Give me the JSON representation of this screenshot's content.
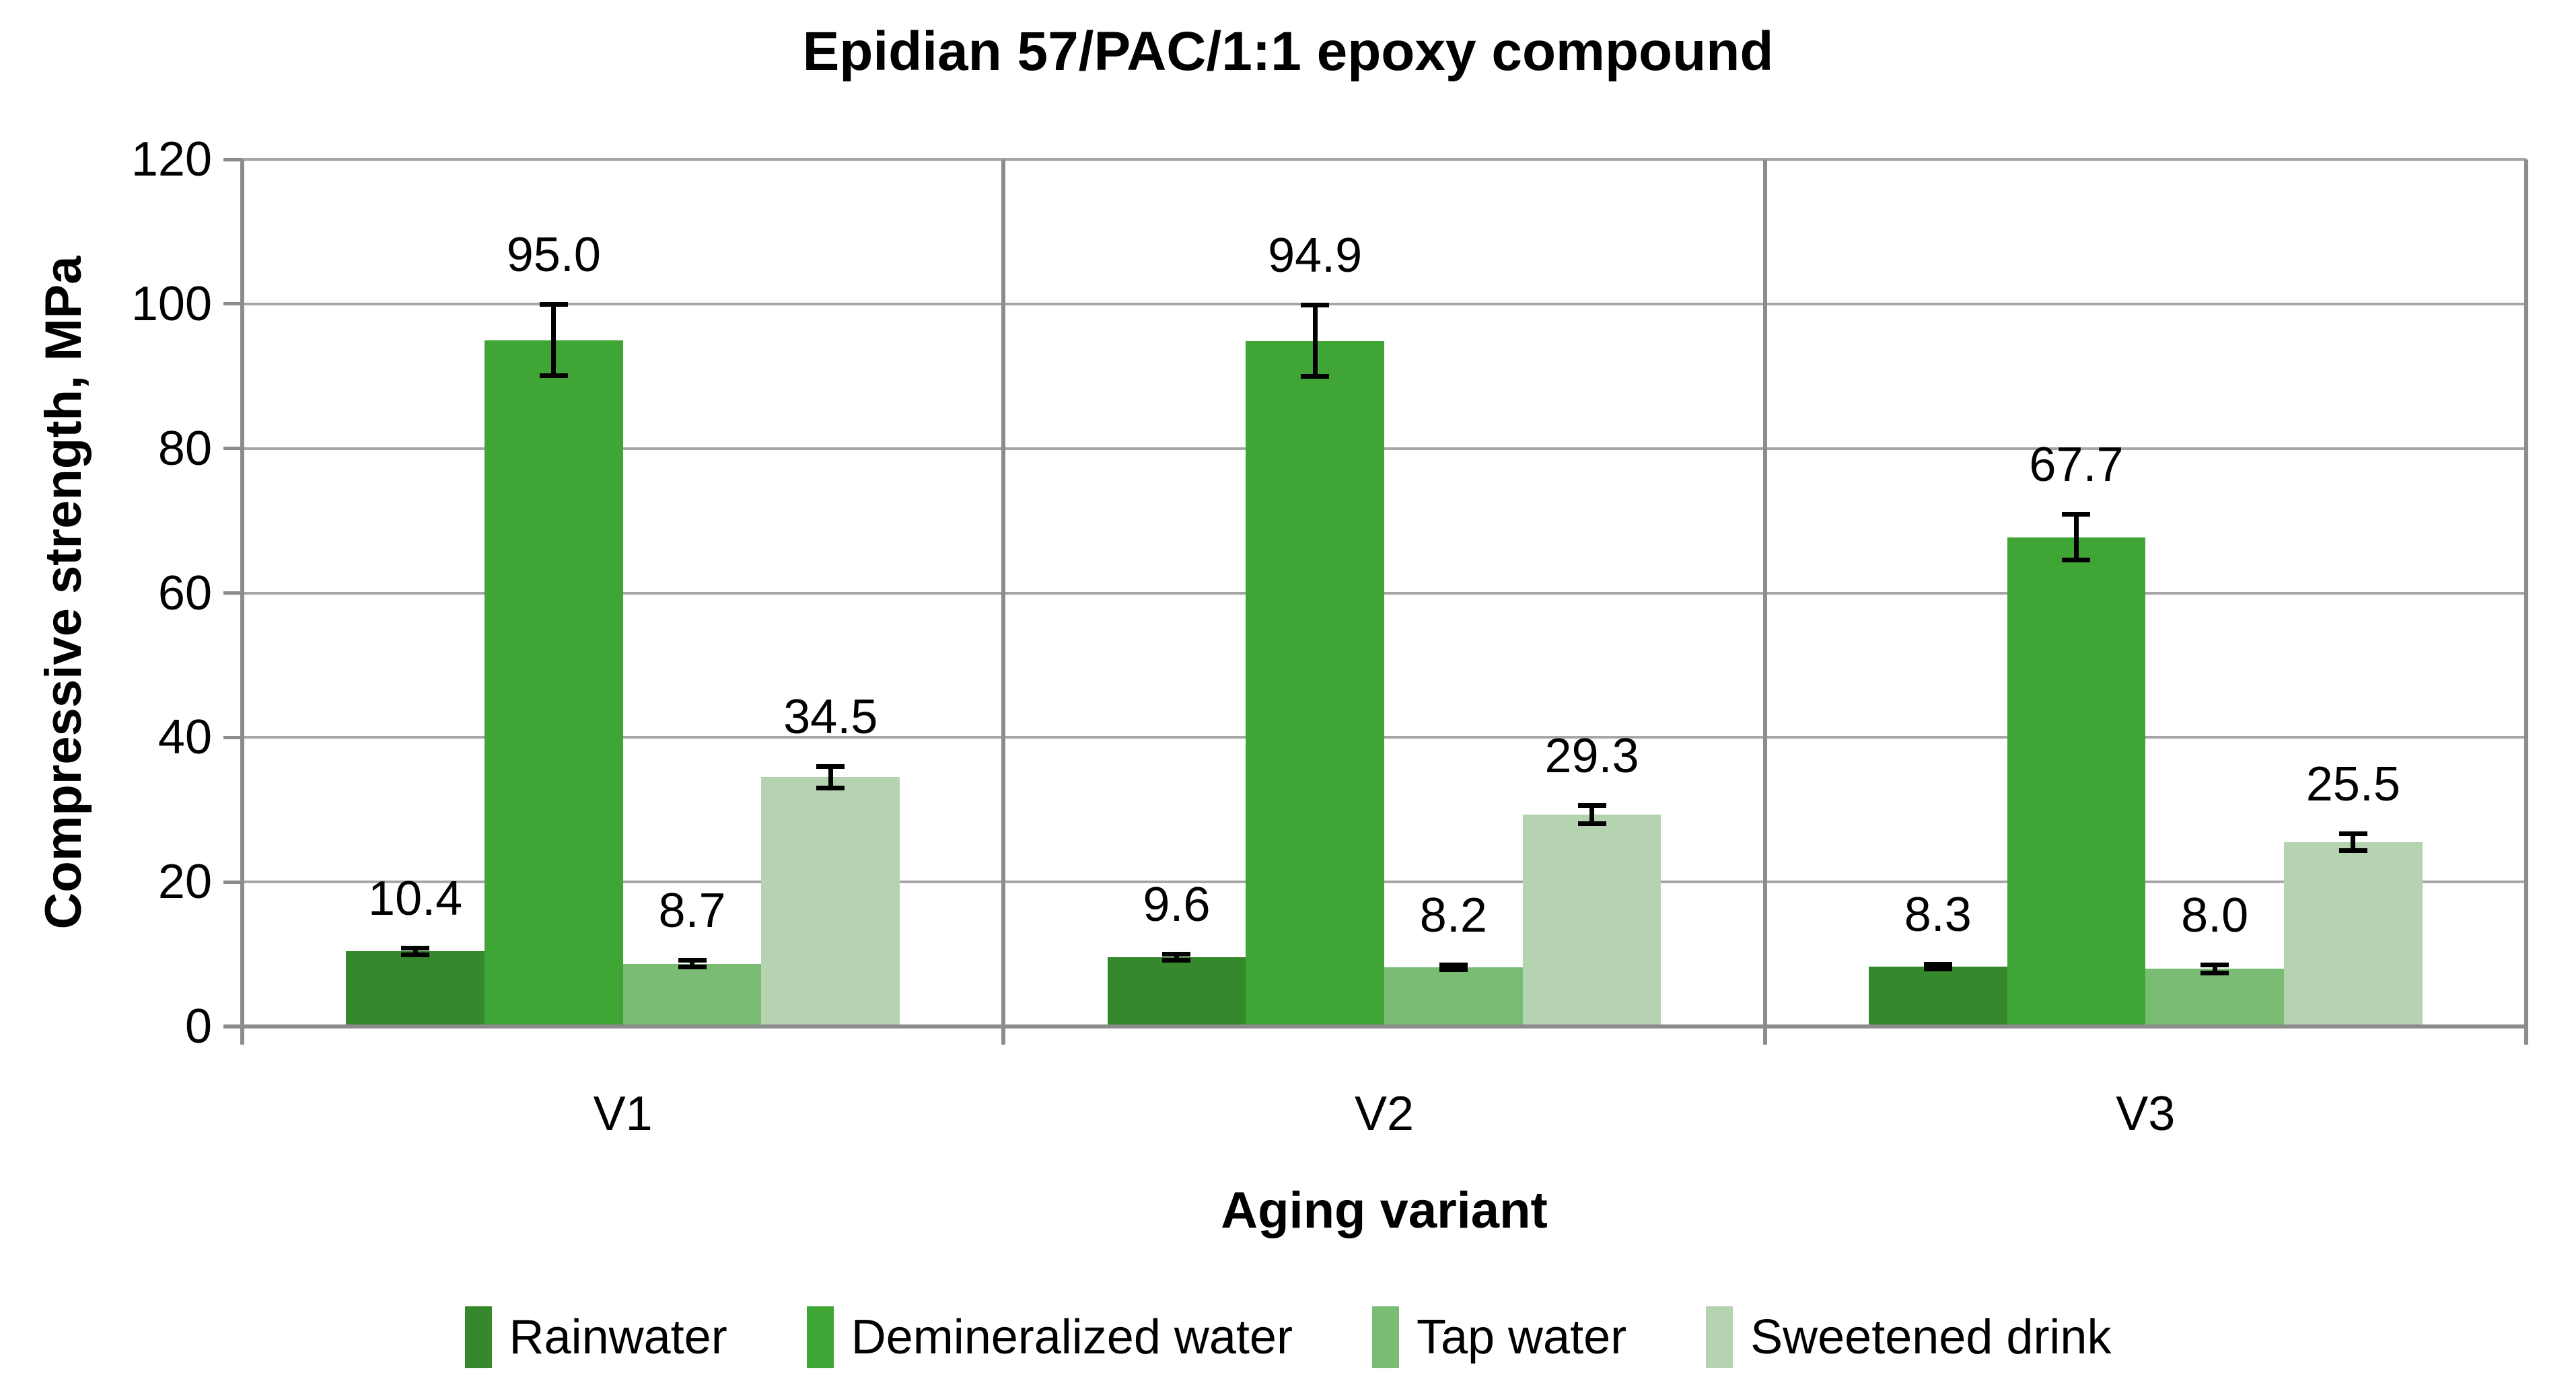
{
  "chart_data": {
    "type": "bar",
    "title": "Epidian 57/PAC/1:1 epoxy compound",
    "xlabel": "Aging variant",
    "ylabel": "Compressive strength, MPa",
    "ylim": [
      0,
      120
    ],
    "yticks": [
      0,
      20,
      40,
      60,
      80,
      100,
      120
    ],
    "ytick_labels": [
      "0",
      "20",
      "40",
      "60",
      "80",
      "100",
      "120"
    ],
    "grid": "horizontal-major",
    "legend_position": "bottom",
    "categories": [
      "V1",
      "V2",
      "V3"
    ],
    "series": [
      {
        "name": "Rainwater",
        "color": "#35882B",
        "values": [
          10.4,
          9.6,
          8.3
        ],
        "errors": [
          0.5,
          0.5,
          0.4
        ]
      },
      {
        "name": "Demineralized water",
        "color": "#3FA535",
        "values": [
          95.0,
          94.9,
          67.7
        ],
        "errors": [
          5.0,
          5.0,
          3.2
        ]
      },
      {
        "name": "Tap water",
        "color": "#7BBC74",
        "values": [
          8.7,
          8.2,
          8.0
        ],
        "errors": [
          0.5,
          0.4,
          0.6
        ]
      },
      {
        "name": "Sweetened drink",
        "color": "#B5D3B1",
        "values": [
          34.5,
          29.3,
          25.5
        ],
        "errors": [
          1.5,
          1.3,
          1.2
        ]
      }
    ],
    "data_labels": [
      [
        "10.4",
        "9.6",
        "8.3"
      ],
      [
        "95.0",
        "94.9",
        "67.7"
      ],
      [
        "8.7",
        "8.2",
        "8.0"
      ],
      [
        "34.5",
        "29.3",
        "25.5"
      ]
    ],
    "colors": {
      "gridline": "#A6A6A6",
      "axis": "#8C8C8C",
      "error_bar": "#000000",
      "text": "#000000",
      "background": "#FFFFFF"
    }
  }
}
